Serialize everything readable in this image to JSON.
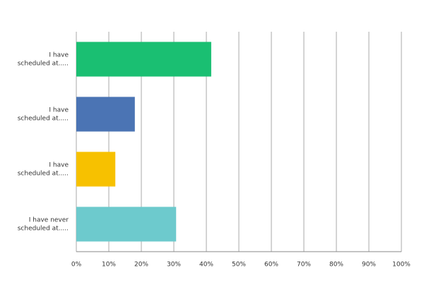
{
  "chart_data": {
    "type": "bar",
    "orientation": "horizontal",
    "categories": [
      [
        "I have",
        "scheduled at....."
      ],
      [
        "I have",
        "scheduled at....."
      ],
      [
        "I have",
        "scheduled at....."
      ],
      [
        "I have never",
        "scheduled at....."
      ]
    ],
    "values": [
      41.5,
      18,
      12,
      30.7
    ],
    "colors": [
      "#1abf72",
      "#4b74b4",
      "#f7c100",
      "#6dcacd"
    ],
    "xlim": [
      0,
      100
    ],
    "xticks": [
      {
        "value": 0,
        "label": "0%"
      },
      {
        "value": 10,
        "label": "10%"
      },
      {
        "value": 20,
        "label": "20%"
      },
      {
        "value": 30,
        "label": "30%"
      },
      {
        "value": 40,
        "label": "40%"
      },
      {
        "value": 50,
        "label": "50%"
      },
      {
        "value": 60,
        "label": "60%"
      },
      {
        "value": 70,
        "label": "70%"
      },
      {
        "value": 80,
        "label": "80%"
      },
      {
        "value": 90,
        "label": "90%"
      },
      {
        "value": 100,
        "label": "100%"
      }
    ],
    "grid": true
  }
}
